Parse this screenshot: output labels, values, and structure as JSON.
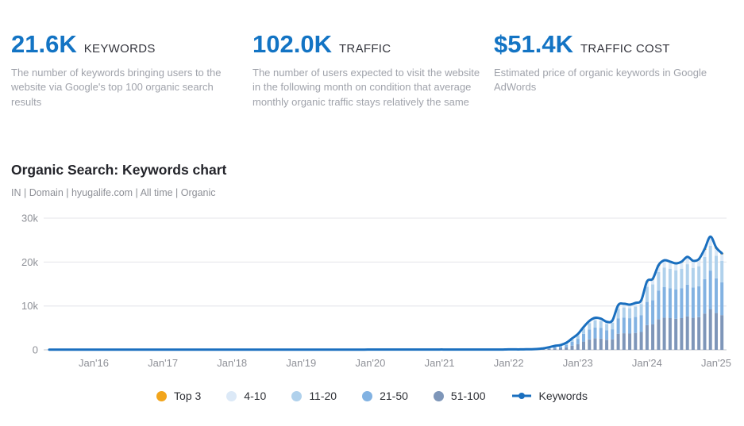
{
  "stats": [
    {
      "value": "21.6K",
      "label": "KEYWORDS",
      "description": "The number of keywords bringing users to the website via Google's top 100 organic search results"
    },
    {
      "value": "102.0K",
      "label": "TRAFFIC",
      "description": "The number of users expected to visit the website in the following month on condition that average monthly organic traffic stays relatively the same"
    },
    {
      "value": "$51.4K",
      "label": "TRAFFIC COST",
      "description": "Estimated price of organic keywords in Google AdWords"
    }
  ],
  "section": {
    "title": "Organic Search: Keywords chart",
    "filters": [
      "IN",
      "Domain",
      "hyugalife.com",
      "All time",
      "Organic"
    ],
    "filters_text": "IN | Domain | hyugalife.com | All time | Organic"
  },
  "chart_data": {
    "type": "bar",
    "subtype": "stacked-monthly-bars-with-line-overlay",
    "start_month": "2016-01",
    "end_month": "2025-02",
    "months_count": 110,
    "x_tick_labels": [
      "Jan'16",
      "Jan'17",
      "Jan'18",
      "Jan'19",
      "Jan'20",
      "Jan'21",
      "Jan'22",
      "Jan'23",
      "Jan'24",
      "Jan'25"
    ],
    "y_tick_labels": [
      "0",
      "10k",
      "20k",
      "30k"
    ],
    "y_tick_values_k": [
      0,
      10,
      20,
      30
    ],
    "ylim_k": [
      0,
      30
    ],
    "grid": "horizontal-only",
    "legend_position": "bottom-center",
    "keywords_total_k": [
      0.05,
      0.05,
      0.05,
      0.05,
      0.05,
      0.05,
      0.05,
      0.05,
      0.05,
      0.05,
      0.05,
      0.05,
      0.05,
      0.05,
      0.05,
      0.05,
      0.05,
      0.05,
      0.05,
      0.05,
      0.05,
      0.05,
      0.05,
      0.05,
      0.06,
      0.06,
      0.06,
      0.06,
      0.06,
      0.06,
      0.06,
      0.06,
      0.06,
      0.06,
      0.06,
      0.06,
      0.06,
      0.06,
      0.06,
      0.06,
      0.06,
      0.06,
      0.06,
      0.06,
      0.06,
      0.06,
      0.06,
      0.06,
      0.07,
      0.07,
      0.07,
      0.07,
      0.07,
      0.07,
      0.07,
      0.07,
      0.07,
      0.07,
      0.07,
      0.07,
      0.08,
      0.08,
      0.08,
      0.08,
      0.08,
      0.08,
      0.08,
      0.08,
      0.08,
      0.08,
      0.08,
      0.08,
      0.1,
      0.1,
      0.1,
      0.12,
      0.15,
      0.2,
      0.35,
      0.6,
      0.9,
      1.1,
      1.6,
      2.6,
      3.6,
      5.2,
      6.6,
      7.3,
      7.1,
      6.4,
      6.7,
      10.2,
      10.5,
      10.3,
      10.7,
      11.3,
      15.6,
      16.2,
      19.3,
      20.4,
      20.1,
      19.7,
      20.1,
      21.2,
      20.3,
      20.7,
      23.0,
      25.8,
      23.3,
      22.0
    ],
    "stack_series_bottom_to_top": [
      {
        "name": "51-100",
        "color": "#7e96b9",
        "fraction": 0.36
      },
      {
        "name": "21-50",
        "color": "#82b2e2",
        "fraction": 0.34
      },
      {
        "name": "11-20",
        "color": "#b0d1ec",
        "fraction": 0.22
      },
      {
        "name": "4-10",
        "color": "#dce9f7",
        "fraction": 0.07
      },
      {
        "name": "Top 3",
        "color": "#f2a51c",
        "fraction": 0.01
      }
    ],
    "line_series": {
      "name": "Keywords",
      "color": "#1a6fbf",
      "width": 3
    }
  },
  "legend": {
    "items": [
      {
        "label": "Top 3",
        "color": "#f2a51c",
        "type": "dot"
      },
      {
        "label": "4-10",
        "color": "#dce9f7",
        "type": "dot"
      },
      {
        "label": "11-20",
        "color": "#b0d1ec",
        "type": "dot"
      },
      {
        "label": "21-50",
        "color": "#82b2e2",
        "type": "dot"
      },
      {
        "label": "51-100",
        "color": "#7e96b9",
        "type": "dot"
      },
      {
        "label": "Keywords",
        "color": "#1a6fbf",
        "type": "line-dot"
      }
    ]
  },
  "colors": {
    "stat_value": "#1374c4",
    "stat_label": "#33343c",
    "description": "#a0a3ab",
    "axis_label": "#8e9097",
    "gridline": "#e9eaee",
    "baseline": "#cfd2d8"
  }
}
